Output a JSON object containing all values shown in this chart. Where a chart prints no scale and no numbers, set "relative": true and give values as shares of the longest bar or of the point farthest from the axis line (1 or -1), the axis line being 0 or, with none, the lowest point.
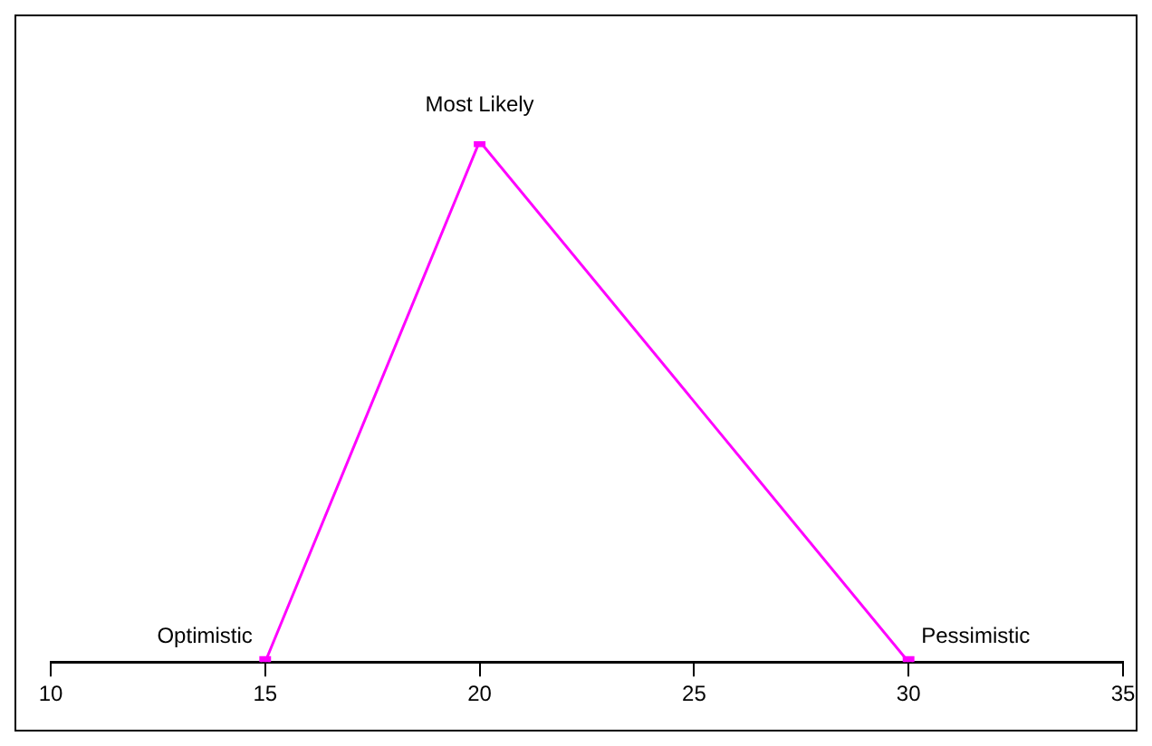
{
  "chart_data": {
    "type": "line",
    "relative": true,
    "x": [
      15,
      20,
      30
    ],
    "series": [
      {
        "color": "#ff00ff",
        "values": [
          0,
          1,
          0
        ]
      }
    ],
    "xlim": [
      10,
      35
    ],
    "xticks": [
      10,
      15,
      20,
      25,
      30,
      35
    ],
    "marker": "square",
    "line_style": "solid",
    "grid": false,
    "legend": false,
    "annotations": [
      {
        "text": "Optimistic",
        "x": 15,
        "y": 0
      },
      {
        "text": "Most Likely",
        "x": 20,
        "y": 1
      },
      {
        "text": "Pessimistic",
        "x": 30,
        "y": 0
      }
    ]
  }
}
